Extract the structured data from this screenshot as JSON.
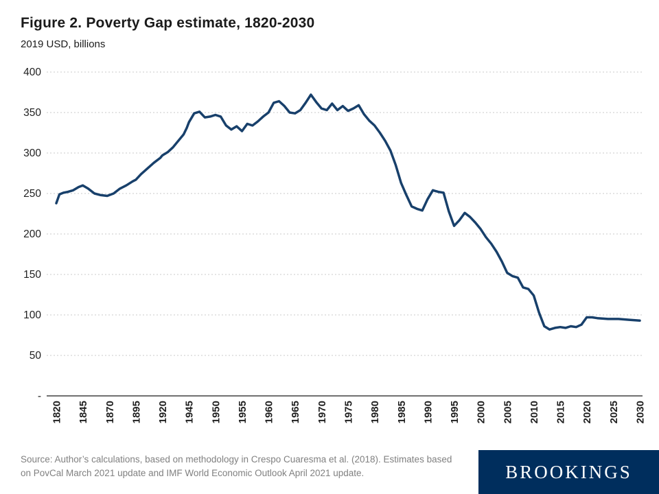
{
  "header": {
    "title": "Figure 2. Poverty Gap estimate, 1820-2030",
    "subtitle": "2019 USD, billions"
  },
  "footer": {
    "source": "Source: Author’s calculations, based on methodology in Crespo Cuaresma et al. (2018). Estimates based on PovCal March 2021 update and IMF World Economic Outlook April 2021 update.",
    "logo_text": "BROOKINGS"
  },
  "colors": {
    "line": "#18406B",
    "grid": "#c9c9c9",
    "axis": "#404040",
    "text": "#1f1f1f",
    "muted": "#808080",
    "navy": "#002E5D"
  },
  "chart_data": {
    "type": "line",
    "title": "Figure 2. Poverty Gap estimate, 1820-2030",
    "subtitle": "2019 USD, billions",
    "ylabel": "2019 USD, billions",
    "xlabel": "",
    "ylim": [
      0,
      400
    ],
    "ytick_step": 50,
    "ytick_zero_label": "-",
    "grid": "horizontal-dashed",
    "legend": "none",
    "x_axis_note": "non-linear axis: 25-year intervals 1820-1945, 5-year intervals 1945-2030",
    "x_tick_labels": [
      "1820",
      "1845",
      "1870",
      "1895",
      "1920",
      "1945",
      "1950",
      "1955",
      "1960",
      "1965",
      "1970",
      "1975",
      "1980",
      "1985",
      "1990",
      "1995",
      "2000",
      "2005",
      "2010",
      "2015",
      "2020",
      "2025",
      "2030"
    ],
    "series": [
      {
        "name": "Poverty gap (2019 USD, billions)",
        "points": [
          [
            1820,
            238
          ],
          [
            1823,
            249
          ],
          [
            1827,
            251
          ],
          [
            1831,
            252
          ],
          [
            1836,
            254
          ],
          [
            1841,
            258
          ],
          [
            1845,
            260
          ],
          [
            1850,
            256
          ],
          [
            1856,
            250
          ],
          [
            1862,
            248
          ],
          [
            1868,
            247
          ],
          [
            1874,
            250
          ],
          [
            1880,
            256
          ],
          [
            1886,
            260
          ],
          [
            1892,
            265
          ],
          [
            1895,
            267
          ],
          [
            1900,
            274
          ],
          [
            1906,
            281
          ],
          [
            1912,
            288
          ],
          [
            1918,
            294
          ],
          [
            1920,
            297
          ],
          [
            1925,
            301
          ],
          [
            1930,
            307
          ],
          [
            1935,
            315
          ],
          [
            1940,
            323
          ],
          [
            1943,
            331
          ],
          [
            1945,
            338
          ],
          [
            1946,
            349
          ],
          [
            1947,
            351
          ],
          [
            1948,
            344
          ],
          [
            1949,
            345
          ],
          [
            1950,
            347
          ],
          [
            1951,
            345
          ],
          [
            1952,
            334
          ],
          [
            1953,
            329
          ],
          [
            1954,
            333
          ],
          [
            1955,
            327
          ],
          [
            1956,
            336
          ],
          [
            1957,
            334
          ],
          [
            1958,
            339
          ],
          [
            1959,
            345
          ],
          [
            1960,
            350
          ],
          [
            1961,
            362
          ],
          [
            1962,
            364
          ],
          [
            1963,
            358
          ],
          [
            1964,
            350
          ],
          [
            1965,
            349
          ],
          [
            1966,
            353
          ],
          [
            1967,
            362
          ],
          [
            1968,
            372
          ],
          [
            1969,
            363
          ],
          [
            1970,
            355
          ],
          [
            1971,
            353
          ],
          [
            1972,
            361
          ],
          [
            1973,
            353
          ],
          [
            1974,
            358
          ],
          [
            1975,
            352
          ],
          [
            1976,
            355
          ],
          [
            1977,
            359
          ],
          [
            1978,
            348
          ],
          [
            1979,
            340
          ],
          [
            1980,
            334
          ],
          [
            1981,
            325
          ],
          [
            1982,
            315
          ],
          [
            1983,
            303
          ],
          [
            1984,
            285
          ],
          [
            1985,
            263
          ],
          [
            1986,
            248
          ],
          [
            1987,
            234
          ],
          [
            1988,
            231
          ],
          [
            1989,
            229
          ],
          [
            1990,
            243
          ],
          [
            1991,
            254
          ],
          [
            1992,
            252
          ],
          [
            1993,
            251
          ],
          [
            1994,
            228
          ],
          [
            1995,
            210
          ],
          [
            1996,
            217
          ],
          [
            1997,
            226
          ],
          [
            1998,
            221
          ],
          [
            1999,
            214
          ],
          [
            2000,
            206
          ],
          [
            2001,
            196
          ],
          [
            2002,
            188
          ],
          [
            2003,
            178
          ],
          [
            2004,
            166
          ],
          [
            2005,
            152
          ],
          [
            2006,
            148
          ],
          [
            2007,
            146
          ],
          [
            2008,
            134
          ],
          [
            2009,
            132
          ],
          [
            2010,
            124
          ],
          [
            2011,
            103
          ],
          [
            2012,
            86
          ],
          [
            2013,
            82
          ],
          [
            2014,
            84
          ],
          [
            2015,
            85
          ],
          [
            2016,
            84
          ],
          [
            2017,
            86
          ],
          [
            2018,
            85
          ],
          [
            2019,
            88
          ],
          [
            2020,
            97
          ],
          [
            2021,
            97
          ],
          [
            2022,
            96
          ],
          [
            2024,
            95
          ],
          [
            2026,
            95
          ],
          [
            2028,
            94
          ],
          [
            2030,
            93
          ]
        ]
      }
    ]
  }
}
